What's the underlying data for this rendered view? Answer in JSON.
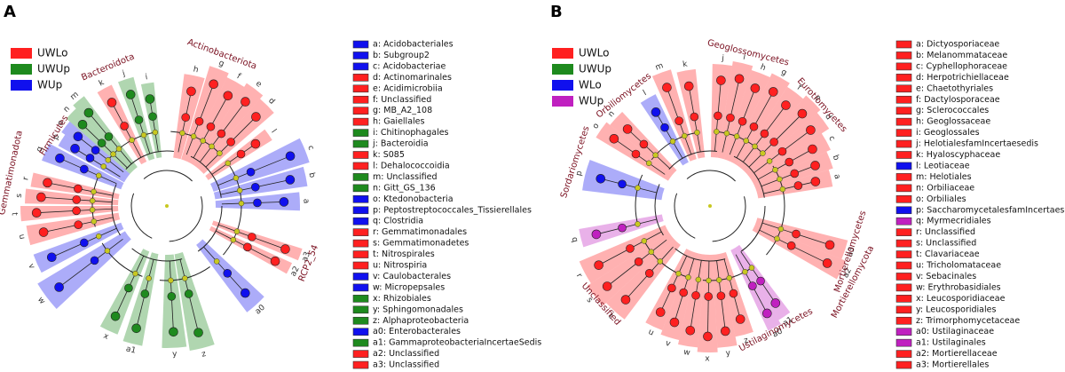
{
  "panels": [
    {
      "letter": "A",
      "legend": [
        {
          "name": "UWLo",
          "color": "#ff2020"
        },
        {
          "name": "UWUp",
          "color": "#1e8a1e"
        },
        {
          "name": "WUp",
          "color": "#1010ee"
        }
      ],
      "clades": [
        "Actinobacteriota",
        "Bacteroidota",
        "Firmicutes",
        "Gemmatimonadota",
        "RCP2_54"
      ],
      "ring": [
        "h",
        "g",
        "f",
        "e",
        "d",
        "l",
        "c",
        "b",
        "a",
        "a3",
        "a2",
        "a0",
        "z",
        "y",
        "a1",
        "x",
        "w",
        "v",
        "u",
        "t",
        "s",
        "r",
        "q",
        "p",
        "o",
        "n",
        "m",
        "k",
        "j",
        "i"
      ],
      "taxa": [
        {
          "label": "a: Acidobacteriales",
          "group": "WUp"
        },
        {
          "label": "b: Subgroup2",
          "group": "WUp"
        },
        {
          "label": "c: Acidobacteriae",
          "group": "WUp"
        },
        {
          "label": "d: Actinomarinales",
          "group": "UWLo"
        },
        {
          "label": "e: Acidimicrobiia",
          "group": "UWLo"
        },
        {
          "label": "f: Unclassified",
          "group": "UWLo"
        },
        {
          "label": "g: MB_A2_108",
          "group": "UWLo"
        },
        {
          "label": "h: Gaiellales",
          "group": "UWLo"
        },
        {
          "label": "i: Chitinophagales",
          "group": "UWUp"
        },
        {
          "label": "j: Bacteroidia",
          "group": "UWUp"
        },
        {
          "label": "k: S085",
          "group": "UWLo"
        },
        {
          "label": "l: Dehalococcoidia",
          "group": "UWLo"
        },
        {
          "label": "m: Unclassified",
          "group": "UWUp"
        },
        {
          "label": "n: Gitt_GS_136",
          "group": "UWUp"
        },
        {
          "label": "o: Ktedonobacteria",
          "group": "WUp"
        },
        {
          "label": "p: Peptostreptococcales_Tissierellales",
          "group": "WUp"
        },
        {
          "label": "q: Clostridia",
          "group": "WUp"
        },
        {
          "label": "r: Gemmatimonadales",
          "group": "UWLo"
        },
        {
          "label": "s: Gemmatimonadetes",
          "group": "UWLo"
        },
        {
          "label": "t: Nitrospirales",
          "group": "UWLo"
        },
        {
          "label": "u: Nitrospiria",
          "group": "UWLo"
        },
        {
          "label": "v: Caulobacterales",
          "group": "WUp"
        },
        {
          "label": "w: Micropepsales",
          "group": "WUp"
        },
        {
          "label": "x: Rhizobiales",
          "group": "UWUp"
        },
        {
          "label": "y: Sphingomonadales",
          "group": "UWUp"
        },
        {
          "label": "z: Alphaproteobacteria",
          "group": "UWUp"
        },
        {
          "label": "a0: Enterobacterales",
          "group": "WUp"
        },
        {
          "label": "a1: GammaproteobacteriaIncertaeSedis",
          "group": "UWUp"
        },
        {
          "label": "a2: Unclassified",
          "group": "UWLo"
        },
        {
          "label": "a3: Unclassified",
          "group": "UWLo"
        }
      ]
    },
    {
      "letter": "B",
      "legend": [
        {
          "name": "UWLo",
          "color": "#ff2020"
        },
        {
          "name": "UWUp",
          "color": "#1e8a1e"
        },
        {
          "name": "WLo",
          "color": "#1010ee"
        },
        {
          "name": "WUp",
          "color": "#c020c0"
        }
      ],
      "clades": [
        "Orbiliomycetes",
        "Geoglossomycetes",
        "Eurotiomycetes",
        "Sordariomycetes",
        "Unclassified",
        "Mortierellomycota",
        "Mortierellomycetes",
        "Ustilaginomycetes"
      ],
      "ring": [
        "j",
        "i",
        "h",
        "g",
        "f",
        "e",
        "d",
        "c",
        "b",
        "a",
        "a3",
        "a2",
        "a1",
        "a0",
        "z",
        "y",
        "x",
        "w",
        "v",
        "u",
        "t",
        "s",
        "r",
        "q",
        "p",
        "o",
        "n",
        "l",
        "m",
        "k"
      ],
      "taxa": [
        {
          "label": "a: Dictyosporiaceae",
          "group": "UWLo"
        },
        {
          "label": "b: Melanommataceae",
          "group": "UWLo"
        },
        {
          "label": "c: Cyphellophoraceae",
          "group": "UWLo"
        },
        {
          "label": "d: Herpotrichiellaceae",
          "group": "UWLo"
        },
        {
          "label": "e: Chaetothyriales",
          "group": "UWLo"
        },
        {
          "label": "f: Dactylosporaceae",
          "group": "UWLo"
        },
        {
          "label": "g: Sclerococcales",
          "group": "UWLo"
        },
        {
          "label": "h: Geoglossaceae",
          "group": "UWLo"
        },
        {
          "label": "i: Geoglossales",
          "group": "UWLo"
        },
        {
          "label": "j: HelotialesfamIncertaesedis",
          "group": "UWLo"
        },
        {
          "label": "k: Hyaloscyphaceae",
          "group": "UWLo"
        },
        {
          "label": "l: Leotiaceae",
          "group": "WLo"
        },
        {
          "label": "m: Helotiales",
          "group": "UWLo"
        },
        {
          "label": "n: Orbiliaceae",
          "group": "UWLo"
        },
        {
          "label": "o: Orbiliales",
          "group": "UWLo"
        },
        {
          "label": "p: SaccharomycetalesfamIncertaesedis",
          "group": "WLo"
        },
        {
          "label": "q: Myrmecridiales",
          "group": "WUp"
        },
        {
          "label": "r: Unclassified",
          "group": "UWLo"
        },
        {
          "label": "s: Unclassified",
          "group": "UWLo"
        },
        {
          "label": "t: Clavariaceae",
          "group": "UWLo"
        },
        {
          "label": "u: Tricholomataceae",
          "group": "UWLo"
        },
        {
          "label": "v: Sebacinales",
          "group": "UWLo"
        },
        {
          "label": "w: Erythrobasidiales",
          "group": "UWLo"
        },
        {
          "label": "x: Leucosporidiaceae",
          "group": "UWLo"
        },
        {
          "label": "y: Leucosporidiales",
          "group": "UWLo"
        },
        {
          "label": "z: Trimorphomycetaceae",
          "group": "UWLo"
        },
        {
          "label": "a0: Ustilaginaceae",
          "group": "WUp"
        },
        {
          "label": "a1: Ustilaginales",
          "group": "WUp"
        },
        {
          "label": "a2: Mortierellaceae",
          "group": "UWLo"
        },
        {
          "label": "a3: Mortierellales",
          "group": "UWLo"
        }
      ]
    }
  ]
}
